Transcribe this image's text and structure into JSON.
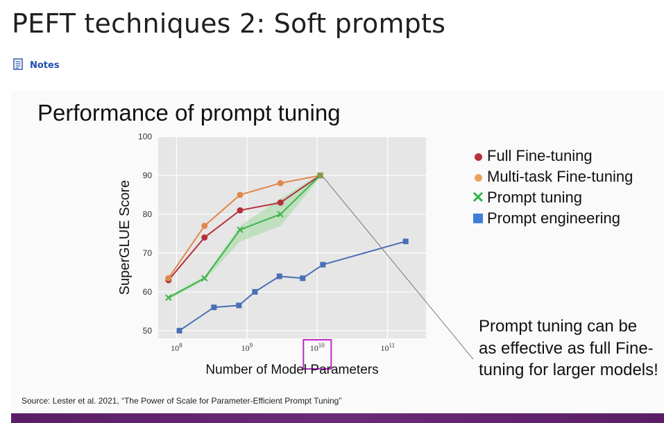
{
  "page": {
    "title": "PEFT techniques 2: Soft prompts",
    "notes_label": "Notes"
  },
  "slide": {
    "title": "Performance of prompt tuning",
    "callout": "Prompt tuning can be as effective as full Fine-tuning for larger models!",
    "source": "Source:  Lester et al. 2021, “The Power of Scale for Parameter-Efficient Prompt Tuning”"
  },
  "chart_data": {
    "type": "line",
    "title": "",
    "xlabel": "Number of Model Parameters",
    "ylabel": "SuperGLUE Score",
    "xscale": "log",
    "xlim": [
      55000000.0,
      350000000000.0
    ],
    "ylim": [
      48,
      100
    ],
    "yticks": [
      50,
      60,
      70,
      80,
      90,
      100
    ],
    "xticks": [
      {
        "value": 100000000.0,
        "base": "10",
        "exp": "8"
      },
      {
        "value": 1000000000.0,
        "base": "10",
        "exp": "9"
      },
      {
        "value": 10000000000.0,
        "base": "10",
        "exp": "10"
      },
      {
        "value": 100000000000.0,
        "base": "10",
        "exp": "11"
      }
    ],
    "highlighted_xtick": 10000000000.0,
    "grid": true,
    "legend_position": "right",
    "series": [
      {
        "name": "Full Fine-tuning",
        "color": "#b5303a",
        "marker": "circle",
        "x": [
          77000000.0,
          250000000.0,
          800000000.0,
          3000000000.0,
          11000000000.0
        ],
        "y": [
          63,
          74,
          81,
          83,
          90
        ]
      },
      {
        "name": "Multi-task Fine-tuning",
        "color": "#e0884a",
        "marker": "circle",
        "x": [
          77000000.0,
          250000000.0,
          800000000.0,
          3000000000.0,
          11000000000.0
        ],
        "y": [
          63.5,
          77,
          85,
          88,
          90
        ]
      },
      {
        "name": "Prompt tuning",
        "color": "#3db34a",
        "marker": "x",
        "x": [
          77000000.0,
          250000000.0,
          800000000.0,
          3000000000.0,
          11000000000.0
        ],
        "y": [
          58.5,
          63.5,
          76,
          80,
          90
        ],
        "band_low": [
          58,
          63,
          73,
          77,
          89.5
        ],
        "band_high": [
          59,
          64,
          77,
          84,
          90.5
        ]
      },
      {
        "name": "Prompt engineering",
        "color": "#4a6fb5",
        "marker": "square",
        "x": [
          110000000.0,
          340000000.0,
          770000000.0,
          1300000000.0,
          2900000000.0,
          6200000000.0,
          12000000000.0,
          180000000000.0
        ],
        "y": [
          50,
          56,
          56.5,
          60,
          64,
          63.5,
          67,
          73
        ]
      }
    ]
  },
  "colors": {
    "plot_background": "#e6e6e6",
    "highlight_box": "#c026c9",
    "footer": "#5a1e66",
    "link": "#1f4fb0"
  }
}
